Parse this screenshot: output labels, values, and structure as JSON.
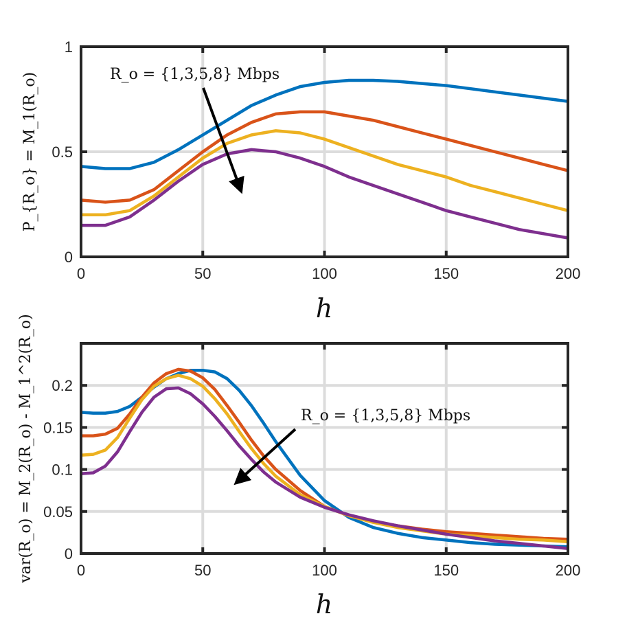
{
  "colors": {
    "series": [
      "#0072BD",
      "#D95319",
      "#EDB120",
      "#7E2F8E"
    ],
    "grid": "#dcdcdc",
    "axes": "#262626",
    "arrow": "#000000"
  },
  "chart_data": [
    {
      "type": "line",
      "xlabel": "h",
      "ylabel": "P_{R_o} = M_1(R_o)",
      "xlim": [
        0,
        200
      ],
      "ylim": [
        0,
        1
      ],
      "xticks": [
        0,
        50,
        100,
        150,
        200
      ],
      "xtick_labels": [
        "0",
        "50",
        "100",
        "150",
        "200"
      ],
      "yticks": [
        0,
        0.5,
        1
      ],
      "ytick_labels": [
        "0",
        "0.5",
        "1"
      ],
      "grid": true,
      "annotation": "R_o = {1,3,5,8} Mbps",
      "x": [
        0,
        10,
        20,
        30,
        40,
        50,
        60,
        70,
        80,
        90,
        100,
        110,
        120,
        130,
        140,
        150,
        160,
        170,
        180,
        190,
        200
      ],
      "series": [
        {
          "values": [
            0.43,
            0.42,
            0.42,
            0.45,
            0.51,
            0.58,
            0.65,
            0.72,
            0.77,
            0.81,
            0.83,
            0.84,
            0.84,
            0.835,
            0.825,
            0.815,
            0.8,
            0.785,
            0.77,
            0.755,
            0.74
          ]
        },
        {
          "values": [
            0.27,
            0.26,
            0.27,
            0.32,
            0.41,
            0.5,
            0.58,
            0.64,
            0.68,
            0.69,
            0.69,
            0.67,
            0.65,
            0.62,
            0.59,
            0.56,
            0.53,
            0.5,
            0.47,
            0.44,
            0.41
          ]
        },
        {
          "values": [
            0.2,
            0.2,
            0.22,
            0.29,
            0.38,
            0.47,
            0.54,
            0.58,
            0.6,
            0.59,
            0.56,
            0.52,
            0.48,
            0.44,
            0.41,
            0.38,
            0.34,
            0.31,
            0.28,
            0.25,
            0.22
          ]
        },
        {
          "values": [
            0.15,
            0.15,
            0.19,
            0.27,
            0.36,
            0.44,
            0.49,
            0.51,
            0.5,
            0.47,
            0.43,
            0.38,
            0.34,
            0.3,
            0.26,
            0.22,
            0.19,
            0.16,
            0.13,
            0.11,
            0.09
          ]
        }
      ]
    },
    {
      "type": "line",
      "xlabel": "h",
      "ylabel": "var(R_o) = M_2(R_o) - M_1^2(R_o)",
      "xlim": [
        0,
        200
      ],
      "ylim": [
        0,
        0.25
      ],
      "xticks": [
        0,
        50,
        100,
        150,
        200
      ],
      "xtick_labels": [
        "0",
        "50",
        "100",
        "150",
        "200"
      ],
      "yticks": [
        0,
        0.05,
        0.1,
        0.15,
        0.2
      ],
      "ytick_labels": [
        "0",
        "0.05",
        "0.1",
        "0.15",
        "0.2"
      ],
      "grid": true,
      "annotation": "R_o = {1,3,5,8} Mbps",
      "x": [
        0,
        5,
        10,
        15,
        20,
        25,
        30,
        35,
        40,
        45,
        50,
        55,
        60,
        65,
        70,
        75,
        80,
        90,
        100,
        110,
        120,
        130,
        140,
        150,
        160,
        170,
        180,
        190,
        200
      ],
      "series": [
        {
          "values": [
            0.168,
            0.167,
            0.167,
            0.169,
            0.175,
            0.186,
            0.198,
            0.208,
            0.214,
            0.218,
            0.218,
            0.216,
            0.208,
            0.194,
            0.176,
            0.155,
            0.133,
            0.093,
            0.063,
            0.043,
            0.031,
            0.024,
            0.019,
            0.016,
            0.013,
            0.011,
            0.01,
            0.009,
            0.008
          ]
        },
        {
          "values": [
            0.14,
            0.14,
            0.142,
            0.149,
            0.166,
            0.186,
            0.203,
            0.214,
            0.219,
            0.217,
            0.209,
            0.195,
            0.176,
            0.156,
            0.135,
            0.116,
            0.1,
            0.075,
            0.056,
            0.045,
            0.038,
            0.033,
            0.029,
            0.026,
            0.024,
            0.022,
            0.02,
            0.018,
            0.017
          ]
        },
        {
          "values": [
            0.117,
            0.118,
            0.123,
            0.138,
            0.161,
            0.183,
            0.199,
            0.208,
            0.212,
            0.208,
            0.199,
            0.184,
            0.166,
            0.145,
            0.125,
            0.107,
            0.092,
            0.07,
            0.056,
            0.045,
            0.037,
            0.031,
            0.027,
            0.023,
            0.021,
            0.019,
            0.017,
            0.016,
            0.014
          ]
        },
        {
          "values": [
            0.095,
            0.096,
            0.104,
            0.121,
            0.145,
            0.168,
            0.186,
            0.196,
            0.197,
            0.19,
            0.178,
            0.163,
            0.146,
            0.128,
            0.112,
            0.097,
            0.085,
            0.067,
            0.055,
            0.046,
            0.039,
            0.033,
            0.028,
            0.023,
            0.019,
            0.015,
            0.012,
            0.009,
            0.006
          ]
        }
      ]
    }
  ]
}
